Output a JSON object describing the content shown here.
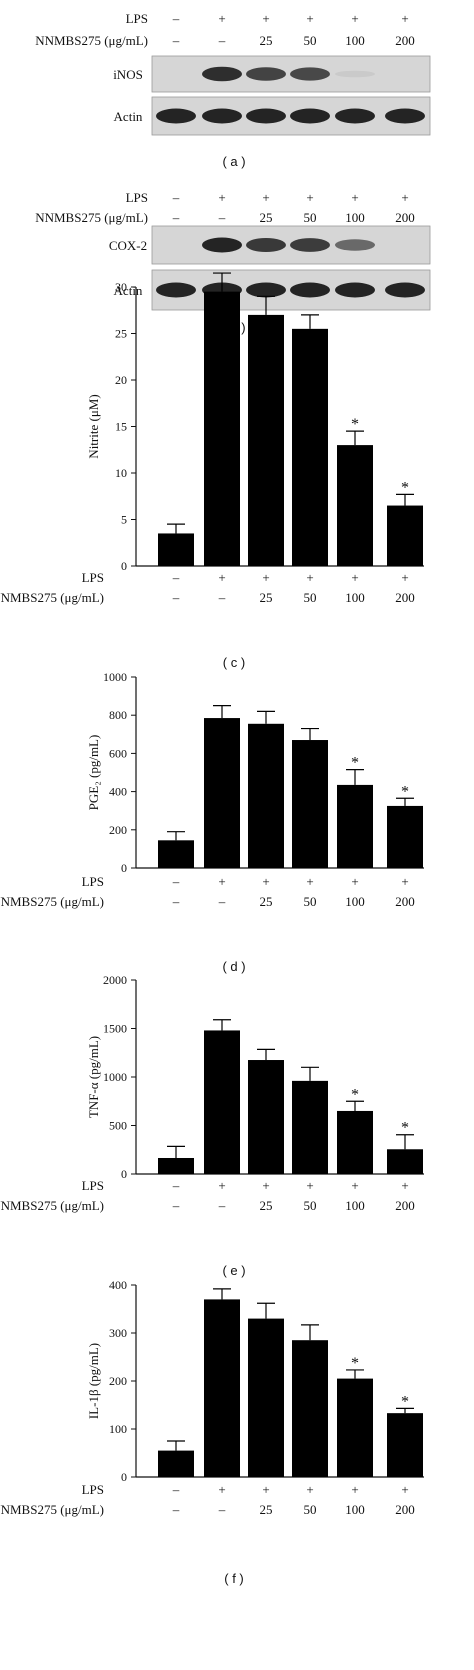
{
  "row_labels": {
    "lps": "LPS",
    "dose": "NNMBS275 (μg/mL)"
  },
  "treatment_cols": {
    "lps": [
      "–",
      "+",
      "+",
      "+",
      "+",
      "+"
    ],
    "dose": [
      "–",
      "–",
      "25",
      "50",
      "100",
      "200"
    ]
  },
  "blots": [
    {
      "panel": "( a )",
      "bands": [
        {
          "name": "iNOS",
          "intensity": [
            0.0,
            0.85,
            0.75,
            0.72,
            0.06,
            0.0
          ]
        },
        {
          "name": "Actin",
          "intensity": [
            0.9,
            0.9,
            0.9,
            0.9,
            0.9,
            0.9
          ]
        }
      ]
    },
    {
      "panel": "( b )",
      "bands": [
        {
          "name": "COX-2",
          "intensity": [
            0.0,
            0.9,
            0.8,
            0.78,
            0.55,
            0.0
          ]
        },
        {
          "name": "Actin",
          "intensity": [
            0.9,
            0.9,
            0.9,
            0.9,
            0.9,
            0.9
          ]
        }
      ]
    }
  ],
  "chart_data": [
    {
      "type": "bar",
      "panel": "( c )",
      "ylabel": "Nitrite (μM)",
      "ylim": [
        0,
        30
      ],
      "yticks": [
        0,
        5,
        10,
        15,
        20,
        25,
        30
      ],
      "values": [
        3.5,
        29.5,
        27,
        25.5,
        13,
        6.5
      ],
      "errors": [
        1.0,
        2.0,
        2.0,
        1.5,
        1.5,
        1.2
      ],
      "significant": [
        false,
        false,
        false,
        false,
        true,
        true
      ]
    },
    {
      "type": "bar",
      "panel": "( d )",
      "ylabel": "PGE₂ (pg/mL)",
      "ylim": [
        0,
        1000
      ],
      "yticks": [
        0,
        200,
        400,
        600,
        800,
        1000
      ],
      "values": [
        145,
        785,
        755,
        670,
        435,
        325
      ],
      "errors": [
        45,
        65,
        65,
        60,
        80,
        40
      ],
      "significant": [
        false,
        false,
        false,
        false,
        true,
        true
      ]
    },
    {
      "type": "bar",
      "panel": "( e )",
      "ylabel": "TNF-α (pg/mL)",
      "ylim": [
        0,
        2000
      ],
      "yticks": [
        0,
        500,
        1000,
        1500,
        2000
      ],
      "values": [
        165,
        1480,
        1175,
        960,
        650,
        255
      ],
      "errors": [
        120,
        110,
        110,
        140,
        100,
        150
      ],
      "significant": [
        false,
        false,
        false,
        false,
        true,
        true
      ]
    },
    {
      "type": "bar",
      "panel": "( f )",
      "ylabel": "IL-1β (pg/mL)",
      "ylim": [
        0,
        400
      ],
      "yticks": [
        0,
        100,
        200,
        300,
        400
      ],
      "values": [
        55,
        370,
        330,
        285,
        205,
        133
      ],
      "errors": [
        20,
        22,
        32,
        32,
        18,
        10
      ],
      "significant": [
        false,
        false,
        false,
        false,
        true,
        true
      ]
    }
  ],
  "significance_mark": "*"
}
